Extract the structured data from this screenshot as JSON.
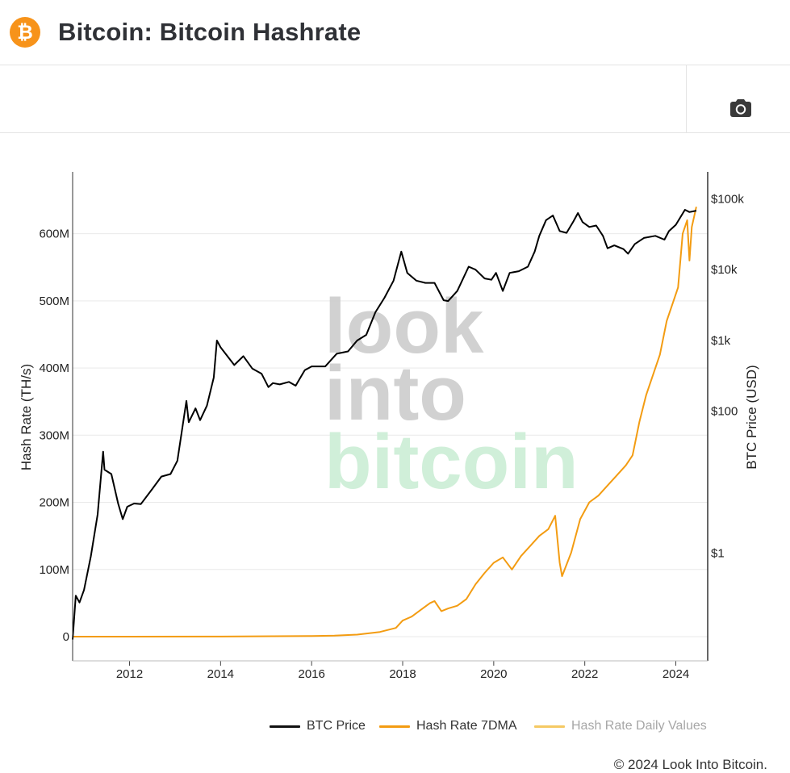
{
  "header": {
    "logo_glyph": "₿",
    "title": "Bitcoin: Bitcoin Hashrate"
  },
  "toolbar": {
    "camera_icon": "camera-icon"
  },
  "chart_data": {
    "type": "line",
    "xlabel": "",
    "ylabel": "Hash Rate (TH/s)",
    "y2label": "BTC Price (USD)",
    "x_ticks": [
      "2012",
      "2014",
      "2016",
      "2018",
      "2020",
      "2022",
      "2024"
    ],
    "x_tick_values": [
      2012,
      2014,
      2016,
      2018,
      2020,
      2022,
      2024
    ],
    "xlim": [
      2010.75,
      2024.7
    ],
    "y_ticks": [
      "0",
      "100M",
      "200M",
      "300M",
      "400M",
      "500M",
      "600M"
    ],
    "y_tick_values": [
      0,
      100,
      200,
      300,
      400,
      500,
      600
    ],
    "ylim": [
      -36,
      692
    ],
    "y_units": "millions TH/s",
    "y2_scale": "log",
    "y2_ticks": [
      "$1",
      "$100",
      "$1k",
      "$10k",
      "$100k"
    ],
    "y2_tick_values": [
      1,
      100,
      1000,
      10000,
      100000
    ],
    "y2lim": [
      0.03,
      240000
    ],
    "grid": true,
    "legend_position": "bottom-right",
    "watermark": [
      "look",
      "into",
      "bitcoin"
    ],
    "series": [
      {
        "name": "BTC Price",
        "axis": "right",
        "color": "#000000",
        "points": [
          [
            2010.75,
            0.06
          ],
          [
            2010.82,
            0.25
          ],
          [
            2010.9,
            0.2
          ],
          [
            2011.0,
            0.3
          ],
          [
            2011.15,
            0.9
          ],
          [
            2011.3,
            3.5
          ],
          [
            2011.42,
            27
          ],
          [
            2011.45,
            15
          ],
          [
            2011.6,
            13
          ],
          [
            2011.75,
            5
          ],
          [
            2011.85,
            3
          ],
          [
            2011.95,
            4.5
          ],
          [
            2012.1,
            5
          ],
          [
            2012.25,
            4.9
          ],
          [
            2012.5,
            8
          ],
          [
            2012.7,
            12
          ],
          [
            2012.9,
            13
          ],
          [
            2013.05,
            20
          ],
          [
            2013.25,
            140
          ],
          [
            2013.3,
            70
          ],
          [
            2013.45,
            110
          ],
          [
            2013.55,
            75
          ],
          [
            2013.7,
            120
          ],
          [
            2013.85,
            300
          ],
          [
            2013.92,
            1000
          ],
          [
            2014.0,
            800
          ],
          [
            2014.15,
            600
          ],
          [
            2014.3,
            450
          ],
          [
            2014.5,
            600
          ],
          [
            2014.7,
            400
          ],
          [
            2014.9,
            340
          ],
          [
            2015.05,
            220
          ],
          [
            2015.15,
            250
          ],
          [
            2015.3,
            240
          ],
          [
            2015.5,
            260
          ],
          [
            2015.65,
            230
          ],
          [
            2015.85,
            380
          ],
          [
            2016.0,
            430
          ],
          [
            2016.3,
            430
          ],
          [
            2016.55,
            650
          ],
          [
            2016.8,
            700
          ],
          [
            2017.0,
            1000
          ],
          [
            2017.2,
            1200
          ],
          [
            2017.4,
            2500
          ],
          [
            2017.6,
            4000
          ],
          [
            2017.8,
            7000
          ],
          [
            2017.97,
            18000
          ],
          [
            2018.1,
            9000
          ],
          [
            2018.3,
            7000
          ],
          [
            2018.5,
            6500
          ],
          [
            2018.7,
            6500
          ],
          [
            2018.9,
            3700
          ],
          [
            2019.0,
            3600
          ],
          [
            2019.2,
            5000
          ],
          [
            2019.45,
            11000
          ],
          [
            2019.6,
            10000
          ],
          [
            2019.8,
            7500
          ],
          [
            2019.95,
            7200
          ],
          [
            2020.05,
            9000
          ],
          [
            2020.2,
            5000
          ],
          [
            2020.35,
            9000
          ],
          [
            2020.55,
            9500
          ],
          [
            2020.75,
            11000
          ],
          [
            2020.9,
            18000
          ],
          [
            2021.0,
            30000
          ],
          [
            2021.15,
            50000
          ],
          [
            2021.3,
            58000
          ],
          [
            2021.45,
            35000
          ],
          [
            2021.6,
            33000
          ],
          [
            2021.75,
            48000
          ],
          [
            2021.85,
            63000
          ],
          [
            2021.95,
            47000
          ],
          [
            2022.1,
            40000
          ],
          [
            2022.25,
            42000
          ],
          [
            2022.4,
            30000
          ],
          [
            2022.5,
            20000
          ],
          [
            2022.65,
            22000
          ],
          [
            2022.85,
            19500
          ],
          [
            2022.95,
            16800
          ],
          [
            2023.1,
            23000
          ],
          [
            2023.3,
            28000
          ],
          [
            2023.55,
            30000
          ],
          [
            2023.75,
            26500
          ],
          [
            2023.85,
            35000
          ],
          [
            2024.0,
            43000
          ],
          [
            2024.2,
            70000
          ],
          [
            2024.3,
            65000
          ],
          [
            2024.45,
            68000
          ]
        ]
      },
      {
        "name": "Hash Rate 7DMA",
        "axis": "left",
        "color": "#f39c12",
        "points": [
          [
            2010.75,
            0
          ],
          [
            2012.0,
            0.01
          ],
          [
            2014.0,
            0.2
          ],
          [
            2016.0,
            1
          ],
          [
            2016.5,
            1.5
          ],
          [
            2017.0,
            3
          ],
          [
            2017.5,
            7
          ],
          [
            2017.85,
            13
          ],
          [
            2018.0,
            24
          ],
          [
            2018.2,
            30
          ],
          [
            2018.4,
            40
          ],
          [
            2018.6,
            50
          ],
          [
            2018.7,
            53
          ],
          [
            2018.85,
            38
          ],
          [
            2019.0,
            42
          ],
          [
            2019.2,
            46
          ],
          [
            2019.4,
            56
          ],
          [
            2019.6,
            78
          ],
          [
            2019.8,
            95
          ],
          [
            2020.0,
            110
          ],
          [
            2020.2,
            118
          ],
          [
            2020.4,
            100
          ],
          [
            2020.6,
            120
          ],
          [
            2020.8,
            135
          ],
          [
            2021.0,
            150
          ],
          [
            2021.2,
            160
          ],
          [
            2021.35,
            180
          ],
          [
            2021.45,
            110
          ],
          [
            2021.5,
            90
          ],
          [
            2021.7,
            125
          ],
          [
            2021.9,
            175
          ],
          [
            2022.1,
            200
          ],
          [
            2022.3,
            210
          ],
          [
            2022.5,
            225
          ],
          [
            2022.7,
            240
          ],
          [
            2022.9,
            255
          ],
          [
            2023.05,
            270
          ],
          [
            2023.2,
            320
          ],
          [
            2023.35,
            360
          ],
          [
            2023.5,
            390
          ],
          [
            2023.65,
            420
          ],
          [
            2023.8,
            470
          ],
          [
            2023.95,
            500
          ],
          [
            2024.05,
            520
          ],
          [
            2024.15,
            600
          ],
          [
            2024.25,
            620
          ],
          [
            2024.3,
            560
          ],
          [
            2024.35,
            610
          ],
          [
            2024.45,
            640
          ]
        ]
      },
      {
        "name": "Hash Rate Daily Values",
        "axis": "left",
        "color": "#f5c963",
        "points": []
      }
    ]
  },
  "legend": {
    "items": [
      {
        "label": "BTC Price",
        "color": "#111111"
      },
      {
        "label": "Hash Rate 7DMA",
        "color": "#f39c12"
      },
      {
        "label": "Hash Rate Daily Values",
        "color": "#f5c963"
      }
    ]
  },
  "footer": {
    "copyright": "© 2024 Look Into Bitcoin."
  }
}
